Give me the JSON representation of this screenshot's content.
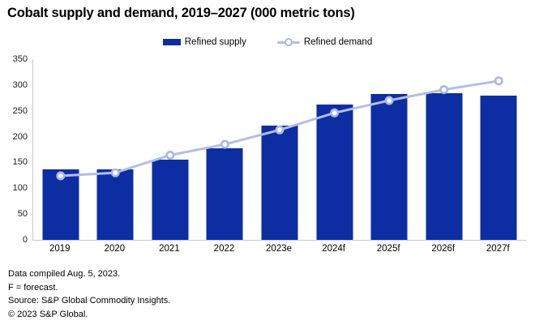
{
  "title": "Cobalt supply and demand, 2019–2027 (000 metric tons)",
  "legend": [
    {
      "label": "Refined supply",
      "type": "bar"
    },
    {
      "label": "Refined demand",
      "type": "line"
    }
  ],
  "colors": {
    "bar": "#0C2EA2",
    "line": "#B3BEE9",
    "marker_stroke": "#AAB6E6",
    "marker_fill": "#FFFFFF",
    "axis": "#C9C9C9"
  },
  "chart_data": {
    "type": "bar",
    "subtype": "bar-with-line-overlay",
    "title": "Cobalt supply and demand, 2019–2027 (000 metric tons)",
    "categories": [
      "2019",
      "2020",
      "2021",
      "2022",
      "2023e",
      "2024f",
      "2025f",
      "2026f",
      "2027f"
    ],
    "series": [
      {
        "name": "Refined supply",
        "type": "bar",
        "values": [
          136,
          137,
          155,
          178,
          221,
          262,
          282,
          284,
          279
        ]
      },
      {
        "name": "Refined demand",
        "type": "line",
        "marker": "open-circle",
        "values": [
          124,
          130,
          164,
          185,
          213,
          246,
          270,
          291,
          308
        ]
      }
    ],
    "xlabel": "",
    "ylabel": "",
    "ylim": [
      0,
      350
    ],
    "ytick_step": 50,
    "grid": false,
    "legend_position": "top-center"
  },
  "footer": {
    "lines": [
      "Data compiled Aug. 5, 2023.",
      "F = forecast.",
      "Source: S&P Global Commodity Insights.",
      "© 2023 S&P Global."
    ]
  }
}
